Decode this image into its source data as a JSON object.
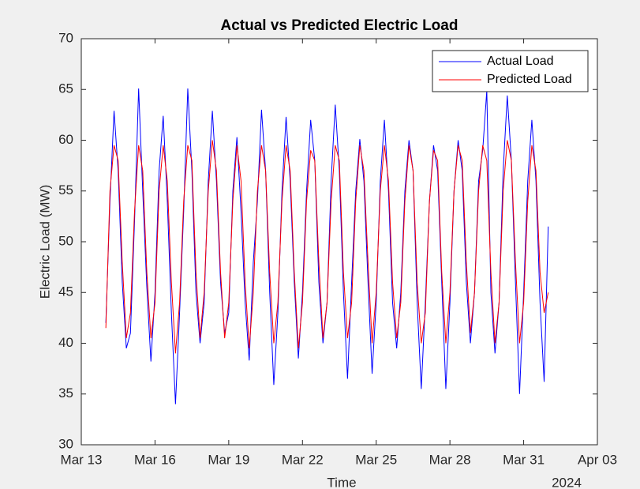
{
  "chart_data": {
    "type": "line",
    "title": "Actual vs Predicted Electric Load",
    "xlabel": "Time",
    "ylabel": "Electric Load (MW)",
    "x_secondary_label": "2024",
    "x": [
      14,
      14.1667,
      14.3333,
      14.5,
      14.6667,
      14.8333,
      15,
      15.1667,
      15.3333,
      15.5,
      15.6667,
      15.8333,
      16,
      16.1667,
      16.3333,
      16.5,
      16.6667,
      16.8333,
      17,
      17.1667,
      17.3333,
      17.5,
      17.6667,
      17.8333,
      18,
      18.1667,
      18.3333,
      18.5,
      18.6667,
      18.8333,
      19,
      19.1667,
      19.3333,
      19.5,
      19.6667,
      19.8333,
      20,
      20.1667,
      20.3333,
      20.5,
      20.6667,
      20.8333,
      21,
      21.1667,
      21.3333,
      21.5,
      21.6667,
      21.8333,
      22,
      22.1667,
      22.3333,
      22.5,
      22.6667,
      22.8333,
      23,
      23.1667,
      23.3333,
      23.5,
      23.6667,
      23.8333,
      24,
      24.1667,
      24.3333,
      24.5,
      24.6667,
      24.8333,
      25,
      25.1667,
      25.3333,
      25.5,
      25.6667,
      25.8333,
      26,
      26.1667,
      26.3333,
      26.5,
      26.6667,
      26.8333,
      27,
      27.1667,
      27.3333,
      27.5,
      27.6667,
      27.8333,
      28,
      28.1667,
      28.3333,
      28.5,
      28.6667,
      28.8333,
      29,
      29.1667,
      29.3333,
      29.5,
      29.6667,
      29.8333,
      30,
      30.1667,
      30.3333,
      30.5,
      30.6667,
      30.8333,
      31,
      31.1667,
      31.3333,
      31.5,
      31.6667,
      31.8333,
      32
    ],
    "series": [
      {
        "name": "Actual Load",
        "color": "#0000ff",
        "values": [
          42,
          54,
          62.9,
          57,
          46,
          39.5,
          41,
          52,
          65.1,
          55,
          45.5,
          38.2,
          45,
          57,
          62.4,
          54,
          43,
          34,
          43,
          53,
          65.1,
          57,
          45,
          40,
          44,
          56,
          62.9,
          56,
          46,
          41,
          43,
          55,
          60.3,
          53,
          44,
          38.3,
          48,
          54,
          63,
          57,
          45,
          35.9,
          43,
          55,
          62.3,
          56,
          46,
          38.5,
          45,
          55,
          62,
          58,
          46,
          40,
          44,
          56,
          63.5,
          57,
          45,
          36.5,
          46,
          55,
          60.1,
          56,
          46,
          37,
          44,
          56,
          62,
          55,
          44,
          39.5,
          45,
          55,
          60,
          57,
          44,
          35.5,
          44,
          54,
          59.5,
          57,
          46,
          35.5,
          44,
          55,
          60,
          57,
          46,
          40,
          45,
          56,
          59,
          64.9,
          45,
          39,
          44,
          57,
          64.4,
          58,
          46,
          35,
          45,
          56,
          62,
          56,
          44,
          36.2,
          51.5
        ]
      },
      {
        "name": "Predicted Load",
        "color": "#ff0000",
        "values": [
          41.5,
          55,
          59.5,
          58,
          48,
          40.5,
          43,
          53,
          59.5,
          57,
          47,
          40.5,
          44,
          55,
          59.5,
          56,
          46,
          39,
          44,
          54,
          59.5,
          58,
          47,
          40.5,
          45,
          55,
          60,
          57,
          47,
          40.5,
          44,
          54,
          59.5,
          56,
          46,
          39.5,
          45,
          55,
          59.5,
          57,
          47,
          40,
          44,
          54,
          59.5,
          57,
          47,
          39.5,
          44,
          54,
          59,
          58,
          48,
          40.5,
          44,
          54,
          59.5,
          58,
          47,
          40.5,
          44,
          54,
          59.5,
          57,
          48,
          40,
          45,
          55,
          59.5,
          56,
          46,
          40.5,
          44,
          54,
          59.5,
          57,
          46,
          40,
          43,
          54,
          59,
          58,
          47,
          40,
          45,
          55,
          59.5,
          58,
          48,
          41,
          45,
          55,
          59.5,
          58,
          47,
          40,
          44,
          55,
          60,
          58,
          48,
          40,
          44,
          54,
          59.5,
          57,
          47,
          43,
          45
        ]
      }
    ],
    "xlim": [
      13,
      34
    ],
    "xticks": [
      {
        "value": 13,
        "label": "Mar 13"
      },
      {
        "value": 16,
        "label": "Mar 16"
      },
      {
        "value": 19,
        "label": "Mar 19"
      },
      {
        "value": 22,
        "label": "Mar 22"
      },
      {
        "value": 25,
        "label": "Mar 25"
      },
      {
        "value": 28,
        "label": "Mar 28"
      },
      {
        "value": 31,
        "label": "Mar 31"
      },
      {
        "value": 34,
        "label": "Apr 03"
      }
    ],
    "ylim": [
      30,
      70
    ],
    "yticks": [
      30,
      35,
      40,
      45,
      50,
      55,
      60,
      65,
      70
    ],
    "grid": false,
    "legend": "northeast"
  }
}
